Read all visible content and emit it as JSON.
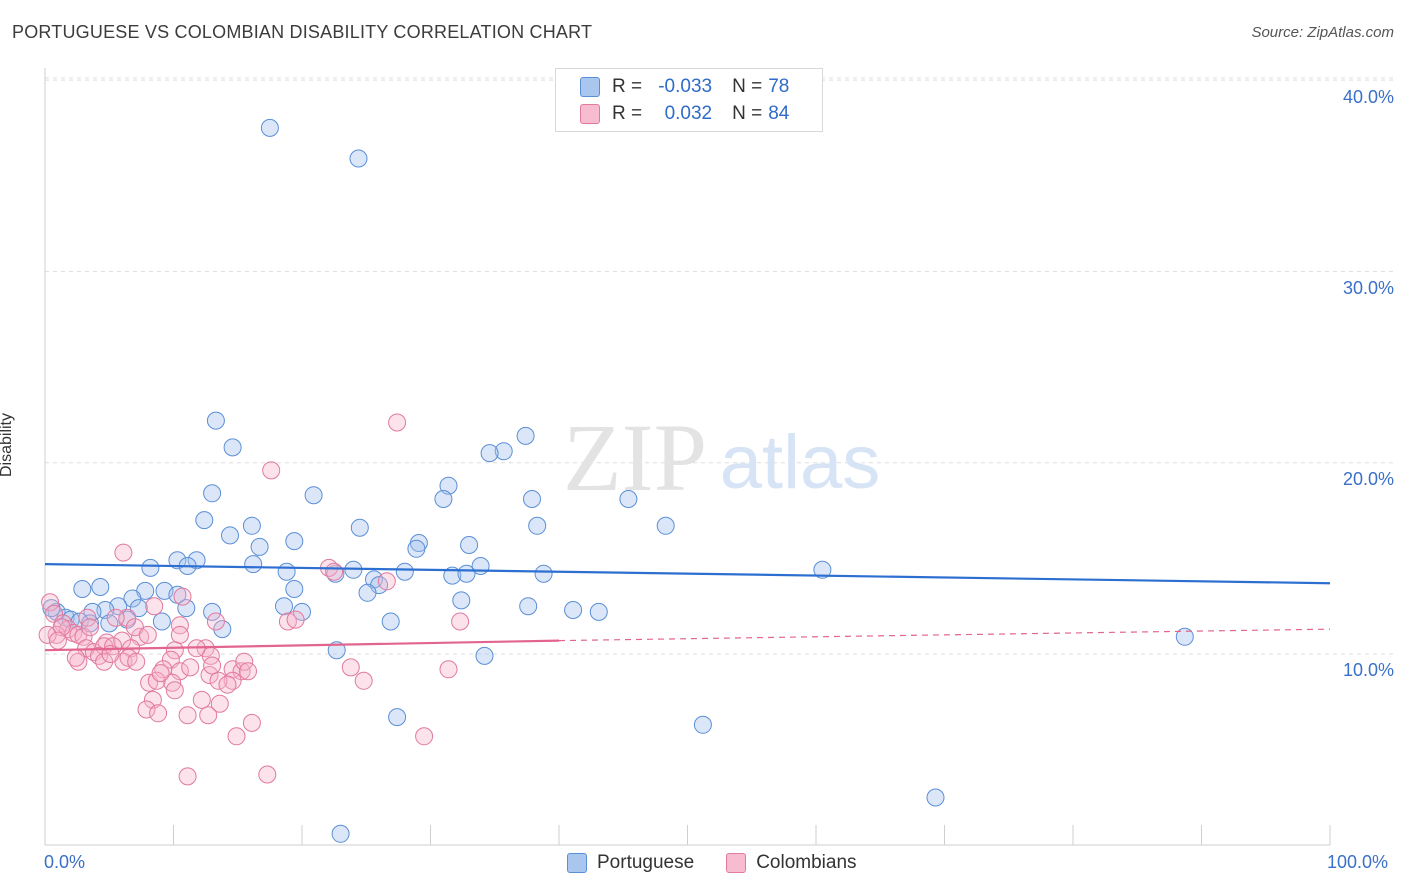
{
  "title": "PORTUGUESE VS COLOMBIAN DISABILITY CORRELATION CHART",
  "source": "Source: ZipAtlas.com",
  "watermark": {
    "zip": "ZIP",
    "atlas": "atlas"
  },
  "legend": {
    "r_label": "R =",
    "n_label": "N =",
    "series": [
      {
        "r": "-0.033",
        "n": "78",
        "color": "#a9c6ef",
        "border": "#5b8fd6"
      },
      {
        "r": "0.032",
        "n": "84",
        "color": "#f7bcd0",
        "border": "#e07a9f"
      }
    ]
  },
  "bottom_legend": [
    "Portuguese",
    "Colombians"
  ],
  "axes": {
    "ylabel": "Disability",
    "x_min_label": "0.0%",
    "x_max_label": "100.0%",
    "y_ticks": [
      "10.0%",
      "20.0%",
      "30.0%",
      "40.0%"
    ]
  },
  "chart_data": {
    "type": "scatter",
    "title": "PORTUGUESE VS COLOMBIAN DISABILITY CORRELATION CHART",
    "xlabel": "",
    "ylabel": "Disability",
    "xlim": [
      0,
      100
    ],
    "ylim": [
      0,
      42
    ],
    "y_ticks": [
      10,
      20,
      30,
      40
    ],
    "grid": true,
    "legend_position": "top-center",
    "series": [
      {
        "name": "Portuguese",
        "color": "#5b8fd6",
        "trend": {
          "x": [
            0,
            100
          ],
          "y": [
            14.7,
            13.7
          ],
          "r": -0.033,
          "n": 78
        },
        "points": [
          [
            17.5,
            37.5
          ],
          [
            24.4,
            35.9
          ],
          [
            13.3,
            22.2
          ],
          [
            37.4,
            21.4
          ],
          [
            14.6,
            20.8
          ],
          [
            35.7,
            20.6
          ],
          [
            34.6,
            20.5
          ],
          [
            31.4,
            18.8
          ],
          [
            13.0,
            18.4
          ],
          [
            20.9,
            18.3
          ],
          [
            31.0,
            18.1
          ],
          [
            37.9,
            18.1
          ],
          [
            45.4,
            18.1
          ],
          [
            12.4,
            17.0
          ],
          [
            16.1,
            16.7
          ],
          [
            24.5,
            16.6
          ],
          [
            48.3,
            16.7
          ],
          [
            38.3,
            16.7
          ],
          [
            14.4,
            16.2
          ],
          [
            16.7,
            15.6
          ],
          [
            19.4,
            15.9
          ],
          [
            29.1,
            15.8
          ],
          [
            28.9,
            15.5
          ],
          [
            33.0,
            15.7
          ],
          [
            11.8,
            14.9
          ],
          [
            10.3,
            14.9
          ],
          [
            8.2,
            14.5
          ],
          [
            11.1,
            14.6
          ],
          [
            16.2,
            14.7
          ],
          [
            33.9,
            14.6
          ],
          [
            24.0,
            14.4
          ],
          [
            18.8,
            14.3
          ],
          [
            22.6,
            14.2
          ],
          [
            31.7,
            14.1
          ],
          [
            32.8,
            14.2
          ],
          [
            38.8,
            14.2
          ],
          [
            28.0,
            14.3
          ],
          [
            25.6,
            13.9
          ],
          [
            26.0,
            13.6
          ],
          [
            60.5,
            14.4
          ],
          [
            2.9,
            13.4
          ],
          [
            4.3,
            13.5
          ],
          [
            7.8,
            13.3
          ],
          [
            9.3,
            13.3
          ],
          [
            10.3,
            13.1
          ],
          [
            19.4,
            13.4
          ],
          [
            25.1,
            13.2
          ],
          [
            32.4,
            12.8
          ],
          [
            6.8,
            12.9
          ],
          [
            5.7,
            12.5
          ],
          [
            4.7,
            12.3
          ],
          [
            3.7,
            12.2
          ],
          [
            7.3,
            12.4
          ],
          [
            11.0,
            12.4
          ],
          [
            13.0,
            12.2
          ],
          [
            20.0,
            12.2
          ],
          [
            18.6,
            12.5
          ],
          [
            37.6,
            12.5
          ],
          [
            41.1,
            12.3
          ],
          [
            43.1,
            12.2
          ],
          [
            0.9,
            12.2
          ],
          [
            1.6,
            11.9
          ],
          [
            2.0,
            11.8
          ],
          [
            2.7,
            11.7
          ],
          [
            3.5,
            11.6
          ],
          [
            5.0,
            11.6
          ],
          [
            6.4,
            11.8
          ],
          [
            9.1,
            11.7
          ],
          [
            13.8,
            11.3
          ],
          [
            26.9,
            11.7
          ],
          [
            88.7,
            10.9
          ],
          [
            22.7,
            10.2
          ],
          [
            34.2,
            9.9
          ],
          [
            27.4,
            6.7
          ],
          [
            51.2,
            6.3
          ],
          [
            69.3,
            2.5
          ],
          [
            23.0,
            0.6
          ],
          [
            0.5,
            12.4
          ]
        ]
      },
      {
        "name": "Colombians",
        "color": "#e07a9f",
        "trend": {
          "x": [
            0,
            40
          ],
          "y": [
            10.2,
            10.7
          ],
          "x_dashed_end": 100,
          "y_dashed_end": 11.3,
          "r": 0.032,
          "n": 84
        },
        "points": [
          [
            27.4,
            22.1
          ],
          [
            17.6,
            19.6
          ],
          [
            6.1,
            15.3
          ],
          [
            22.1,
            14.5
          ],
          [
            26.6,
            13.8
          ],
          [
            22.5,
            14.3
          ],
          [
            8.5,
            12.5
          ],
          [
            10.7,
            13.0
          ],
          [
            10.5,
            11.5
          ],
          [
            13.3,
            11.7
          ],
          [
            18.9,
            11.7
          ],
          [
            32.3,
            11.7
          ],
          [
            6.4,
            11.9
          ],
          [
            3.3,
            11.9
          ],
          [
            0.4,
            12.7
          ],
          [
            0.7,
            12.1
          ],
          [
            1.4,
            11.6
          ],
          [
            1.8,
            11.3
          ],
          [
            2.2,
            11.1
          ],
          [
            2.6,
            11.0
          ],
          [
            3.0,
            10.9
          ],
          [
            0.9,
            11.0
          ],
          [
            4.8,
            10.6
          ],
          [
            6.0,
            10.7
          ],
          [
            7.4,
            10.9
          ],
          [
            7.0,
            11.4
          ],
          [
            10.5,
            11.0
          ],
          [
            19.5,
            11.8
          ],
          [
            1.3,
            11.4
          ],
          [
            3.2,
            10.3
          ],
          [
            3.8,
            10.1
          ],
          [
            4.6,
            10.4
          ],
          [
            5.3,
            10.4
          ],
          [
            6.7,
            10.3
          ],
          [
            12.5,
            10.3
          ],
          [
            10.1,
            10.2
          ],
          [
            9.8,
            9.7
          ],
          [
            12.9,
            9.9
          ],
          [
            4.2,
            9.9
          ],
          [
            2.6,
            9.6
          ],
          [
            4.6,
            9.6
          ],
          [
            6.1,
            9.6
          ],
          [
            6.5,
            9.8
          ],
          [
            7.1,
            9.6
          ],
          [
            9.2,
            9.2
          ],
          [
            10.5,
            9.1
          ],
          [
            11.3,
            9.3
          ],
          [
            14.6,
            9.2
          ],
          [
            15.3,
            9.1
          ],
          [
            15.5,
            9.6
          ],
          [
            23.8,
            9.3
          ],
          [
            31.4,
            9.2
          ],
          [
            12.8,
            8.9
          ],
          [
            14.6,
            8.6
          ],
          [
            8.1,
            8.5
          ],
          [
            8.7,
            8.6
          ],
          [
            9.9,
            8.5
          ],
          [
            10.1,
            8.1
          ],
          [
            13.5,
            8.6
          ],
          [
            14.2,
            8.4
          ],
          [
            24.8,
            8.6
          ],
          [
            8.4,
            7.6
          ],
          [
            7.9,
            7.1
          ],
          [
            12.2,
            7.6
          ],
          [
            13.6,
            7.4
          ],
          [
            8.8,
            6.9
          ],
          [
            11.1,
            6.8
          ],
          [
            12.7,
            6.8
          ],
          [
            16.1,
            6.4
          ],
          [
            14.9,
            5.7
          ],
          [
            29.5,
            5.7
          ],
          [
            11.1,
            3.6
          ],
          [
            17.3,
            3.7
          ],
          [
            0.2,
            11.0
          ],
          [
            1.0,
            10.7
          ],
          [
            2.4,
            9.8
          ],
          [
            5.1,
            10.0
          ],
          [
            3.5,
            11.4
          ],
          [
            8.0,
            11.0
          ],
          [
            9.0,
            9.0
          ],
          [
            11.8,
            10.3
          ],
          [
            13.0,
            9.4
          ],
          [
            15.8,
            9.1
          ],
          [
            5.5,
            11.9
          ]
        ]
      }
    ]
  }
}
